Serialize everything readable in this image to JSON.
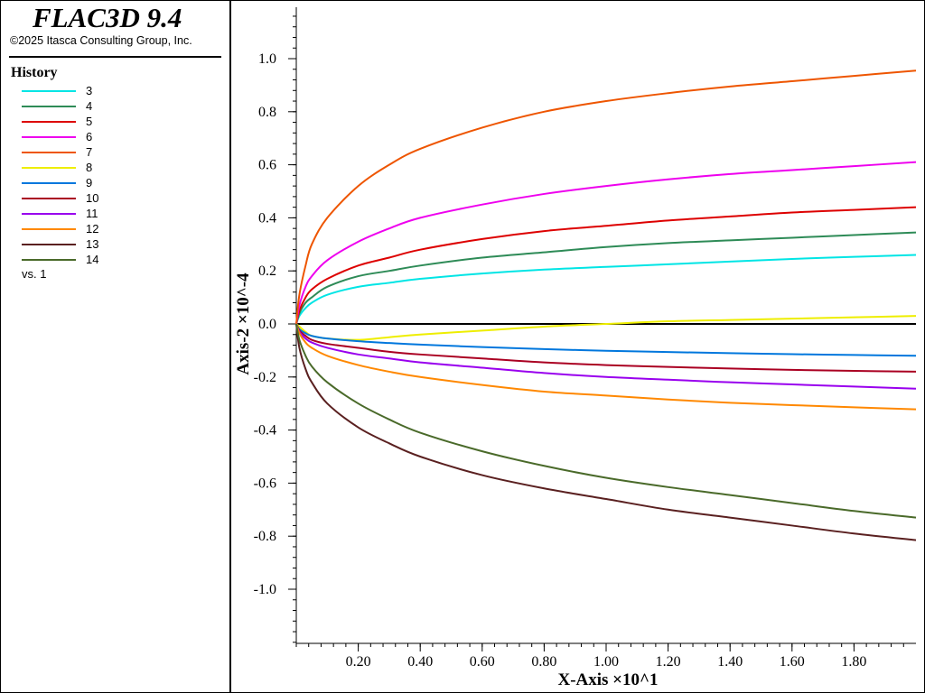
{
  "header": {
    "app_title": "FLAC3D 9.4",
    "copyright": "©2025 Itasca Consulting Group, Inc."
  },
  "legend": {
    "title": "History",
    "vs_label": "vs. 1"
  },
  "chart_data": {
    "type": "line",
    "xlabel": "X-Axis ×10^1",
    "ylabel": "Axis-2 ×10^-4",
    "xlim": [
      0,
      2.0
    ],
    "ylim": [
      -1.2,
      1.2
    ],
    "x_ticks": [
      0.2,
      0.4,
      0.6,
      0.8,
      1.0,
      1.2,
      1.4,
      1.6,
      1.8
    ],
    "x_tick_labels": [
      "0.20",
      "0.40",
      "0.60",
      "0.80",
      "1.00",
      "1.20",
      "1.40",
      "1.60",
      "1.80"
    ],
    "y_ticks": [
      1.0,
      0.8,
      0.6,
      0.4,
      0.2,
      0.0,
      -0.2,
      -0.4,
      -0.6,
      -0.8,
      -1.0
    ],
    "y_tick_labels": [
      "1.0",
      "0.8",
      "0.6",
      "0.4",
      "0.2",
      "0.0",
      "-0.2",
      "-0.4",
      "-0.6",
      "-0.8",
      "-1.0"
    ],
    "x": [
      0,
      0.01,
      0.03,
      0.05,
      0.1,
      0.2,
      0.3,
      0.4,
      0.6,
      0.8,
      1.0,
      1.2,
      1.4,
      1.6,
      1.8,
      2.0
    ],
    "series": [
      {
        "name": "3",
        "color": "#00e5e5",
        "values": [
          0,
          0.03,
          0.06,
          0.08,
          0.11,
          0.14,
          0.155,
          0.17,
          0.19,
          0.205,
          0.215,
          0.225,
          0.235,
          0.245,
          0.253,
          0.26
        ]
      },
      {
        "name": "4",
        "color": "#2e8b57",
        "values": [
          0,
          0.04,
          0.08,
          0.1,
          0.14,
          0.18,
          0.2,
          0.22,
          0.25,
          0.27,
          0.29,
          0.305,
          0.315,
          0.325,
          0.335,
          0.345
        ]
      },
      {
        "name": "5",
        "color": "#dd0000",
        "values": [
          0,
          0.05,
          0.1,
          0.13,
          0.17,
          0.22,
          0.25,
          0.28,
          0.32,
          0.35,
          0.37,
          0.39,
          0.405,
          0.42,
          0.43,
          0.44
        ]
      },
      {
        "name": "6",
        "color": "#ee00ee",
        "values": [
          0,
          0.07,
          0.14,
          0.18,
          0.24,
          0.31,
          0.36,
          0.4,
          0.45,
          0.49,
          0.52,
          0.545,
          0.565,
          0.58,
          0.595,
          0.61
        ]
      },
      {
        "name": "7",
        "color": "#ee5500",
        "values": [
          0,
          0.11,
          0.22,
          0.3,
          0.4,
          0.52,
          0.6,
          0.66,
          0.74,
          0.8,
          0.84,
          0.87,
          0.895,
          0.915,
          0.935,
          0.955
        ]
      },
      {
        "name": "8",
        "color": "#eeee00",
        "values": [
          0,
          -0.01,
          -0.03,
          -0.045,
          -0.055,
          -0.06,
          -0.05,
          -0.04,
          -0.025,
          -0.01,
          0.0,
          0.01,
          0.015,
          0.02,
          0.025,
          0.03
        ]
      },
      {
        "name": "9",
        "color": "#0077dd",
        "values": [
          0,
          -0.02,
          -0.035,
          -0.045,
          -0.055,
          -0.065,
          -0.072,
          -0.078,
          -0.087,
          -0.095,
          -0.101,
          -0.106,
          -0.11,
          -0.114,
          -0.117,
          -0.12
        ]
      },
      {
        "name": "10",
        "color": "#aa0022",
        "values": [
          0,
          -0.025,
          -0.045,
          -0.06,
          -0.075,
          -0.09,
          -0.105,
          -0.115,
          -0.13,
          -0.145,
          -0.155,
          -0.162,
          -0.168,
          -0.173,
          -0.177,
          -0.18
        ]
      },
      {
        "name": "11",
        "color": "#9900ee",
        "values": [
          0,
          -0.03,
          -0.055,
          -0.07,
          -0.09,
          -0.115,
          -0.13,
          -0.145,
          -0.165,
          -0.185,
          -0.2,
          -0.21,
          -0.22,
          -0.228,
          -0.236,
          -0.244
        ]
      },
      {
        "name": "12",
        "color": "#ff8800",
        "values": [
          0,
          -0.035,
          -0.07,
          -0.09,
          -0.12,
          -0.155,
          -0.18,
          -0.2,
          -0.23,
          -0.255,
          -0.27,
          -0.285,
          -0.297,
          -0.306,
          -0.314,
          -0.322
        ]
      },
      {
        "name": "13",
        "color": "#5a2020",
        "values": [
          0,
          -0.09,
          -0.17,
          -0.22,
          -0.3,
          -0.39,
          -0.45,
          -0.5,
          -0.57,
          -0.62,
          -0.66,
          -0.7,
          -0.73,
          -0.76,
          -0.79,
          -0.815
        ]
      },
      {
        "name": "14",
        "color": "#4a6a2a",
        "values": [
          0,
          -0.06,
          -0.12,
          -0.16,
          -0.22,
          -0.3,
          -0.36,
          -0.41,
          -0.48,
          -0.535,
          -0.58,
          -0.615,
          -0.645,
          -0.675,
          -0.705,
          -0.73
        ]
      }
    ]
  }
}
